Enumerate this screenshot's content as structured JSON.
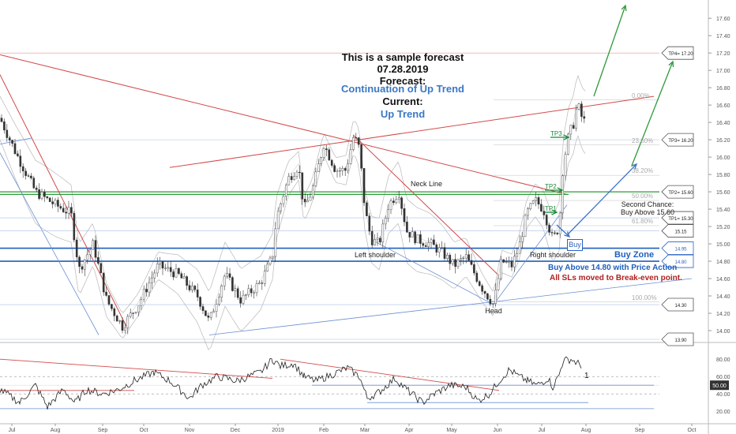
{
  "annotations": {
    "title_lines": [
      "This is a sample forecast",
      "07.28.2019",
      "Forecast:"
    ],
    "forecast_value": "Continuation of Up Trend",
    "current_label": "Current:",
    "current_value": "Up Trend",
    "neck_line": "Neck Line",
    "second_chance_1": "Second Chance:",
    "second_chance_2": "Buy Above 15.60",
    "left_shoulder": "Left shoulder",
    "right_shoulder": "Right shoulder",
    "head": "Head",
    "buy_box": "Buy",
    "buy_zone": "Buy Zone",
    "buy_above": "Buy Above 14.80 with Price Action",
    "all_sls": "All SLs moved to Break-even point.",
    "tp_marks": [
      "TP3",
      "TP2",
      "TP1"
    ],
    "rsi_mark": "1"
  },
  "chart_data": {
    "type": "candlestick",
    "x_ticks": [
      "Jul",
      "Aug",
      "Sep",
      "Oct",
      "Nov",
      "Dec",
      "2019",
      "Feb",
      "Mar",
      "Apr",
      "May",
      "Jun",
      "Jul",
      "Aug",
      "Sep",
      "Oct"
    ],
    "y_ticks": [
      "17.60",
      "17.40",
      "17.20",
      "17.00",
      "16.80",
      "16.60",
      "16.40",
      "16.20",
      "16.00",
      "15.80",
      "15.60",
      "15.40",
      "15.20",
      "15.00",
      "14.80",
      "14.60",
      "14.40",
      "14.20",
      "14.00"
    ],
    "ylim": [
      13.9,
      17.72
    ],
    "price_badges": [
      {
        "label": "TP4= 17.20",
        "value": 17.2
      },
      {
        "label": "TP3= 16.20",
        "value": 16.2
      },
      {
        "label": "TP2= 15.60",
        "value": 15.6
      },
      {
        "label": "TP1= 15.30",
        "value": 15.3
      },
      {
        "label": "15.15",
        "value": 15.15
      },
      {
        "label": "14.95",
        "value": 14.95
      },
      {
        "label": "14.80",
        "value": 14.8
      },
      {
        "label": "14.30",
        "value": 14.3
      },
      {
        "label": "13.90",
        "value": 13.9
      }
    ],
    "fib_levels": [
      {
        "label": "0.00%",
        "value": 16.66
      },
      {
        "label": "23.60%",
        "value": 16.14
      },
      {
        "label": "38.20%",
        "value": 15.79
      },
      {
        "label": "50.00%",
        "value": 15.5
      },
      {
        "label": "61.80%",
        "value": 15.21
      },
      {
        "label": "100.00%",
        "value": 14.33
      }
    ],
    "rsi": {
      "y_ticks": [
        "80.00",
        "60.00",
        "40.00",
        "20.00"
      ],
      "ylim": [
        12,
        92
      ],
      "current_badge": "50.00",
      "current_value": 50.0
    },
    "price_waypoints": [
      [
        0,
        16.45
      ],
      [
        20,
        16.05
      ],
      [
        45,
        15.6
      ],
      [
        70,
        15.45
      ],
      [
        90,
        15.35
      ],
      [
        100,
        14.7
      ],
      [
        118,
        15.0
      ],
      [
        135,
        14.35
      ],
      [
        155,
        14.05
      ],
      [
        175,
        14.3
      ],
      [
        200,
        14.75
      ],
      [
        225,
        14.65
      ],
      [
        250,
        14.4
      ],
      [
        265,
        14.1
      ],
      [
        285,
        14.65
      ],
      [
        305,
        14.35
      ],
      [
        330,
        14.55
      ],
      [
        345,
        14.85
      ],
      [
        350,
        15.3
      ],
      [
        365,
        15.75
      ],
      [
        378,
        15.9
      ],
      [
        385,
        15.4
      ],
      [
        395,
        15.6
      ],
      [
        410,
        16.15
      ],
      [
        425,
        15.85
      ],
      [
        438,
        15.85
      ],
      [
        448,
        16.25
      ],
      [
        455,
        16.1
      ],
      [
        462,
        15.4
      ],
      [
        470,
        15.05
      ],
      [
        480,
        15.0
      ],
      [
        492,
        15.45
      ],
      [
        505,
        15.6
      ],
      [
        515,
        15.15
      ],
      [
        528,
        15.05
      ],
      [
        545,
        15.0
      ],
      [
        560,
        14.9
      ],
      [
        575,
        14.75
      ],
      [
        590,
        14.85
      ],
      [
        610,
        14.5
      ],
      [
        625,
        14.3
      ],
      [
        635,
        14.8
      ],
      [
        648,
        14.75
      ],
      [
        657,
        14.95
      ],
      [
        667,
        15.35
      ],
      [
        678,
        15.5
      ],
      [
        688,
        15.4
      ],
      [
        700,
        15.05
      ],
      [
        708,
        15.2
      ],
      [
        713,
        15.9
      ],
      [
        720,
        16.25
      ],
      [
        727,
        16.4
      ],
      [
        731,
        16.62
      ],
      [
        737,
        16.45
      ],
      [
        741,
        16.4
      ]
    ],
    "rsi_waypoints": [
      [
        0,
        45
      ],
      [
        25,
        30
      ],
      [
        45,
        50
      ],
      [
        60,
        25
      ],
      [
        80,
        45
      ],
      [
        95,
        30
      ],
      [
        110,
        45
      ],
      [
        130,
        40
      ],
      [
        150,
        45
      ],
      [
        170,
        55
      ],
      [
        195,
        65
      ],
      [
        215,
        55
      ],
      [
        240,
        35
      ],
      [
        255,
        50
      ],
      [
        275,
        60
      ],
      [
        300,
        55
      ],
      [
        330,
        65
      ],
      [
        345,
        80
      ],
      [
        355,
        72
      ],
      [
        372,
        75
      ],
      [
        385,
        60
      ],
      [
        400,
        55
      ],
      [
        420,
        62
      ],
      [
        440,
        70
      ],
      [
        455,
        60
      ],
      [
        465,
        35
      ],
      [
        480,
        42
      ],
      [
        500,
        58
      ],
      [
        515,
        45
      ],
      [
        535,
        30
      ],
      [
        550,
        40
      ],
      [
        570,
        50
      ],
      [
        590,
        48
      ],
      [
        605,
        32
      ],
      [
        620,
        40
      ],
      [
        632,
        55
      ],
      [
        645,
        68
      ],
      [
        657,
        60
      ],
      [
        668,
        55
      ],
      [
        680,
        50
      ],
      [
        694,
        58
      ],
      [
        700,
        48
      ],
      [
        708,
        62
      ],
      [
        713,
        78
      ],
      [
        723,
        80
      ],
      [
        732,
        75
      ],
      [
        738,
        72
      ]
    ]
  }
}
